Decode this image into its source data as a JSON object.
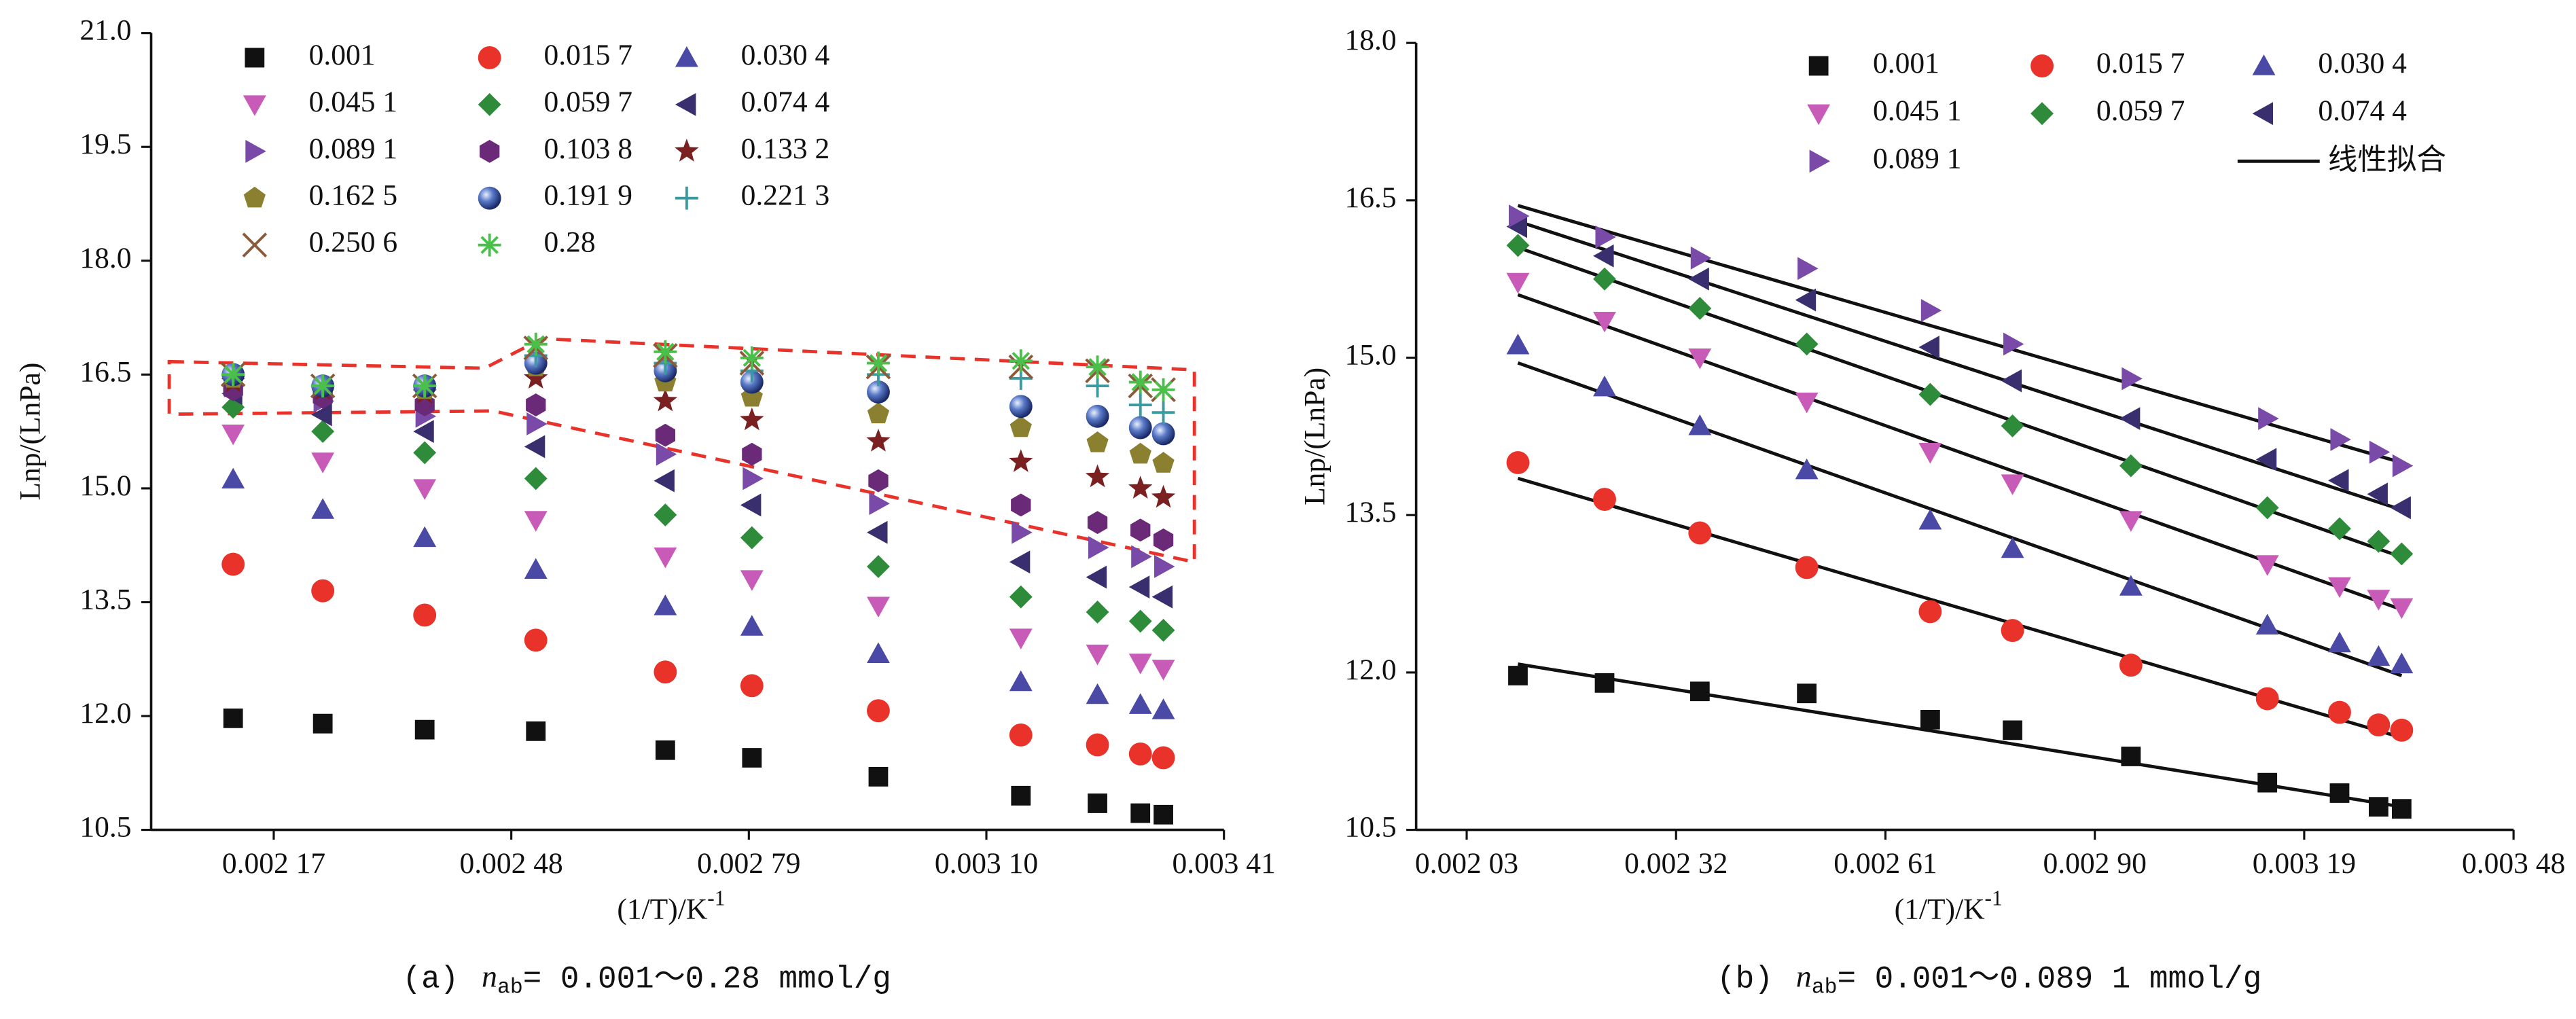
{
  "chart_data": [
    {
      "type": "scatter",
      "ylabel": "Lnp/(LnPa)",
      "xlabel": "(1/T)/K",
      "xlabel_sup": "-1",
      "caption": [
        "(a)",
        "n",
        "ab",
        "= 0.001～0.28 mmol/g"
      ],
      "x": [
        0.002117,
        0.002234,
        0.002367,
        0.002512,
        0.002681,
        0.002794,
        0.002959,
        0.003145,
        0.003245,
        0.003301,
        0.003331
      ],
      "xlim": [
        0.00201,
        0.00341
      ],
      "xticks": [
        {
          "value": 0.00217,
          "label": "0.002 17"
        },
        {
          "value": 0.00248,
          "label": "0.002 48"
        },
        {
          "value": 0.00279,
          "label": "0.002 79"
        },
        {
          "value": 0.0031,
          "label": "0.003 10"
        },
        {
          "value": 0.00341,
          "label": "0.003 41"
        }
      ],
      "ylim": [
        10.5,
        21
      ],
      "yticks": [
        10.5,
        {
          "value": 12,
          "label": "12.0"
        },
        13.5,
        {
          "value": 15,
          "label": "15.0"
        },
        16.5,
        {
          "value": 18,
          "label": "18.0"
        },
        19.5,
        {
          "value": 21,
          "label": "21.0"
        }
      ],
      "series": [
        {
          "name": "0.001",
          "marker": "square",
          "color": "#111111",
          "values": [
            11.97,
            11.9,
            11.82,
            11.8,
            11.55,
            11.45,
            11.2,
            10.95,
            10.85,
            10.72,
            10.7
          ]
        },
        {
          "name": "0.015 7",
          "marker": "circle",
          "color": "#e8322a",
          "values": [
            14.0,
            13.65,
            13.33,
            13.0,
            12.58,
            12.4,
            12.07,
            11.75,
            11.62,
            11.5,
            11.45
          ]
        },
        {
          "name": "0.030 4",
          "marker": "triangle-up",
          "color": "#4a4aa6",
          "values": [
            15.12,
            14.72,
            14.35,
            13.93,
            13.45,
            13.18,
            12.82,
            12.45,
            12.28,
            12.15,
            12.08
          ]
        },
        {
          "name": "0.045 1",
          "marker": "triangle-down",
          "color": "#c85ab8",
          "values": [
            15.72,
            15.35,
            15.0,
            14.58,
            14.1,
            13.8,
            13.45,
            13.03,
            12.82,
            12.7,
            12.62
          ]
        },
        {
          "name": "0.059 7",
          "marker": "diamond",
          "color": "#2e8b3a",
          "values": [
            16.07,
            15.75,
            15.47,
            15.13,
            14.65,
            14.35,
            13.97,
            13.57,
            13.37,
            13.25,
            13.13
          ]
        },
        {
          "name": "0.074 4",
          "marker": "triangle-left",
          "color": "#3a2f6e",
          "values": [
            16.25,
            15.97,
            15.75,
            15.55,
            15.1,
            14.78,
            14.42,
            14.03,
            13.83,
            13.7,
            13.57
          ]
        },
        {
          "name": "0.089 1",
          "marker": "triangle-right",
          "color": "#7a4aa8",
          "values": [
            16.35,
            16.15,
            15.95,
            15.85,
            15.45,
            15.13,
            14.8,
            14.42,
            14.22,
            14.1,
            13.97
          ]
        },
        {
          "name": "0.103 8",
          "marker": "hexagon",
          "color": "#6a2a78",
          "values": [
            16.3,
            16.2,
            16.1,
            16.1,
            15.7,
            15.45,
            15.1,
            14.78,
            14.55,
            14.45,
            14.32
          ]
        },
        {
          "name": "0.133 2",
          "marker": "star",
          "color": "#7a2020",
          "values": [
            16.4,
            16.3,
            16.25,
            16.45,
            16.15,
            15.9,
            15.62,
            15.35,
            15.15,
            15.0,
            14.88
          ]
        },
        {
          "name": "0.162 5",
          "marker": "pentagon",
          "color": "#8a8030",
          "values": [
            16.45,
            16.35,
            16.3,
            16.6,
            16.4,
            16.2,
            15.98,
            15.8,
            15.6,
            15.45,
            15.33
          ]
        },
        {
          "name": "0.191 9",
          "marker": "sphere",
          "color": "#3a5aa8",
          "values": [
            16.5,
            16.35,
            16.35,
            16.65,
            16.55,
            16.4,
            16.27,
            16.08,
            15.95,
            15.8,
            15.72
          ]
        },
        {
          "name": "0.221 3",
          "marker": "plus",
          "color": "#3a9aa0",
          "values": [
            16.5,
            16.35,
            16.35,
            16.75,
            16.65,
            16.55,
            16.5,
            16.45,
            16.35,
            16.1,
            16.0
          ]
        },
        {
          "name": "0.250 6",
          "marker": "x",
          "color": "#8a5a3a",
          "values": [
            16.5,
            16.35,
            16.35,
            16.85,
            16.75,
            16.65,
            16.6,
            16.6,
            16.55,
            16.35,
            16.3
          ]
        },
        {
          "name": "0.28",
          "marker": "asterisk",
          "color": "#4ac04a",
          "values": [
            16.5,
            16.35,
            16.35,
            16.9,
            16.8,
            16.72,
            16.65,
            16.68,
            16.6,
            16.4,
            16.3
          ]
        }
      ]
    },
    {
      "type": "scatter",
      "ylabel": "Lnp/(LnPa)",
      "xlabel": "(1/T)/K",
      "xlabel_sup": "-1",
      "caption": [
        "(b)",
        "n",
        "ab",
        "= 0.001～0.089 1 mmol/g"
      ],
      "x": [
        0.002101,
        0.002221,
        0.002353,
        0.002501,
        0.002672,
        0.002786,
        0.00295,
        0.003139,
        0.003239,
        0.003293,
        0.003325
      ],
      "xlim": [
        0.00196,
        0.00348
      ],
      "xticks": [
        {
          "value": 0.00203,
          "label": "0.002 03"
        },
        {
          "value": 0.00232,
          "label": "0.002 32"
        },
        {
          "value": 0.00261,
          "label": "0.002 61"
        },
        {
          "value": 0.0029,
          "label": "0.002 90"
        },
        {
          "value": 0.00319,
          "label": "0.003 19"
        },
        {
          "value": 0.00348,
          "label": "0.003 48"
        }
      ],
      "ylim": [
        10.5,
        18
      ],
      "yticks": [
        10.5,
        {
          "value": 12,
          "label": "12.0"
        },
        13.5,
        {
          "value": 15,
          "label": "15.0"
        },
        16.5,
        {
          "value": 18,
          "label": "18.0"
        }
      ],
      "series": [
        {
          "name": "0.001",
          "marker": "square",
          "color": "#111111",
          "values": [
            11.97,
            11.9,
            11.82,
            11.8,
            11.55,
            11.45,
            11.2,
            10.95,
            10.85,
            10.72,
            10.7
          ]
        },
        {
          "name": "0.015 7",
          "marker": "circle",
          "color": "#e8322a",
          "values": [
            14.0,
            13.65,
            13.33,
            13.0,
            12.58,
            12.4,
            12.07,
            11.75,
            11.62,
            11.5,
            11.45
          ]
        },
        {
          "name": "0.030 4",
          "marker": "triangle-up",
          "color": "#4a4aa6",
          "values": [
            15.12,
            14.72,
            14.35,
            13.93,
            13.45,
            13.18,
            12.82,
            12.45,
            12.28,
            12.15,
            12.08
          ]
        },
        {
          "name": "0.045 1",
          "marker": "triangle-down",
          "color": "#c85ab8",
          "values": [
            15.72,
            15.35,
            15.0,
            14.58,
            14.1,
            13.8,
            13.45,
            13.03,
            12.82,
            12.7,
            12.62
          ]
        },
        {
          "name": "0.059 7",
          "marker": "diamond",
          "color": "#2e8b3a",
          "values": [
            16.07,
            15.75,
            15.47,
            15.13,
            14.65,
            14.35,
            13.97,
            13.57,
            13.37,
            13.25,
            13.13
          ]
        },
        {
          "name": "0.074 4",
          "marker": "triangle-left",
          "color": "#3a2f6e",
          "values": [
            16.25,
            15.97,
            15.75,
            15.55,
            15.1,
            14.78,
            14.42,
            14.03,
            13.83,
            13.7,
            13.57
          ]
        },
        {
          "name": "0.089 1",
          "marker": "triangle-right",
          "color": "#7a4aa8",
          "values": [
            16.35,
            16.15,
            15.95,
            15.85,
            15.45,
            15.13,
            14.8,
            14.42,
            14.22,
            14.1,
            13.97
          ]
        }
      ],
      "fit": {
        "name": "线性拟合",
        "color": "#111111",
        "lines": [
          {
            "x": [
              0.002101,
              0.003325
            ],
            "y": [
              12.08,
              10.72
            ]
          },
          {
            "x": [
              0.002101,
              0.003325
            ],
            "y": [
              13.85,
              11.38
            ]
          },
          {
            "x": [
              0.002101,
              0.003325
            ],
            "y": [
              14.95,
              11.97
            ]
          },
          {
            "x": [
              0.002101,
              0.003325
            ],
            "y": [
              15.6,
              12.6
            ]
          },
          {
            "x": [
              0.002101,
              0.003325
            ],
            "y": [
              16.05,
              13.1
            ]
          },
          {
            "x": [
              0.002101,
              0.003325
            ],
            "y": [
              16.3,
              13.55
            ]
          },
          {
            "x": [
              0.002101,
              0.003325
            ],
            "y": [
              16.45,
              14.0
            ]
          }
        ]
      }
    }
  ]
}
